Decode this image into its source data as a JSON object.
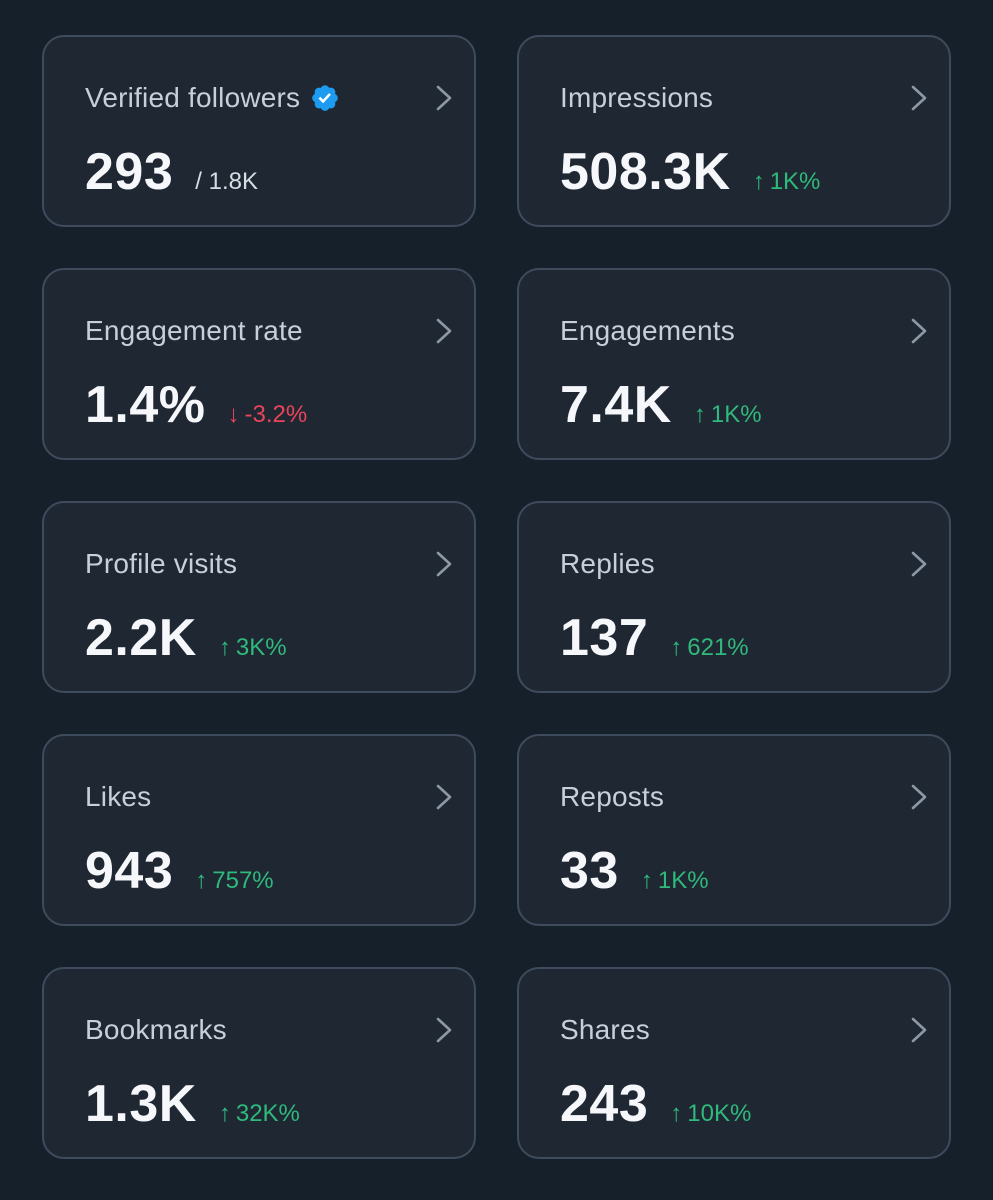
{
  "colors": {
    "background": "#15202b",
    "card": "#1f2733",
    "card_border": "#3d4b5c",
    "up": "#2fb97b",
    "down": "#e8455a",
    "verified": "#1d9bf0"
  },
  "cards": [
    {
      "title": "Verified followers",
      "value": "293",
      "sub": "/ 1.8K",
      "verified_icon": "verified-badge-icon"
    },
    {
      "title": "Impressions",
      "value": "508.3K",
      "change_arrow": "↑",
      "change": "1K%",
      "direction": "up"
    },
    {
      "title": "Engagement rate",
      "value": "1.4%",
      "change_arrow": "↓",
      "change": "-3.2%",
      "direction": "down"
    },
    {
      "title": "Engagements",
      "value": "7.4K",
      "change_arrow": "↑",
      "change": "1K%",
      "direction": "up"
    },
    {
      "title": "Profile visits",
      "value": "2.2K",
      "change_arrow": "↑",
      "change": "3K%",
      "direction": "up"
    },
    {
      "title": "Replies",
      "value": "137",
      "change_arrow": "↑",
      "change": "621%",
      "direction": "up"
    },
    {
      "title": "Likes",
      "value": "943",
      "change_arrow": "↑",
      "change": "757%",
      "direction": "up"
    },
    {
      "title": "Reposts",
      "value": "33",
      "change_arrow": "↑",
      "change": "1K%",
      "direction": "up"
    },
    {
      "title": "Bookmarks",
      "value": "1.3K",
      "change_arrow": "↑",
      "change": "32K%",
      "direction": "up"
    },
    {
      "title": "Shares",
      "value": "243",
      "change_arrow": "↑",
      "change": "10K%",
      "direction": "up"
    }
  ]
}
